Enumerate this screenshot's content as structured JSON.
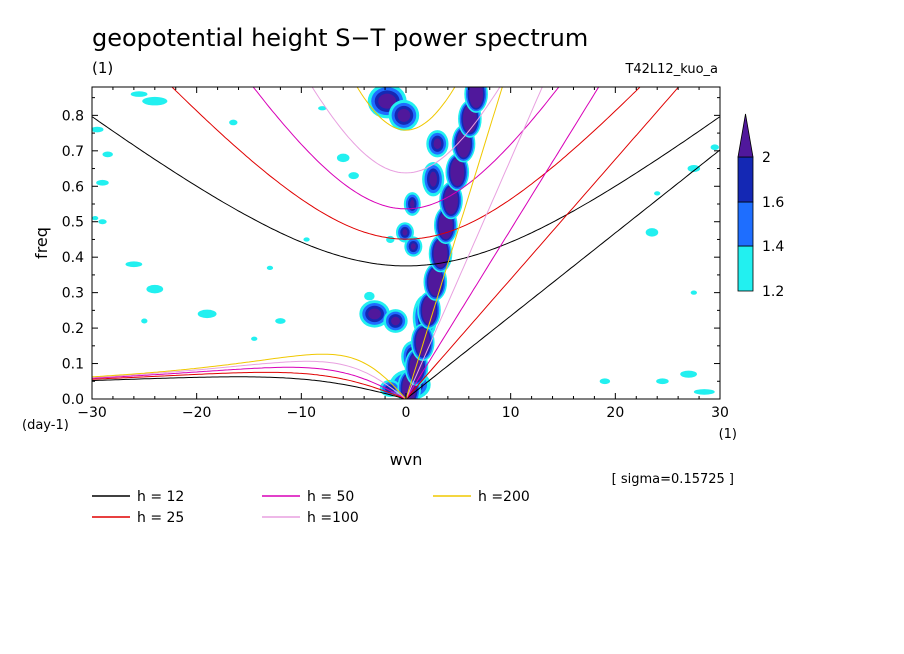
{
  "chart_data": {
    "type": "heatmap",
    "title": "geopotential height S−T power spectrum",
    "subtitle": "(1)",
    "run_label": "T42L12_kuo_a",
    "xlabel": "wvn",
    "xunit": "(1)",
    "ylabel": "freq",
    "yunit": "(day-1)",
    "sigma_label": "[ sigma=0.15725 ]",
    "xlim": [
      -30,
      30
    ],
    "ylim": [
      0,
      0.88
    ],
    "xticks": [
      -30,
      -20,
      -10,
      0,
      10,
      20,
      30
    ],
    "yticks": [
      0.0,
      0.1,
      0.2,
      0.3,
      0.4,
      0.5,
      0.6,
      0.7,
      0.8
    ],
    "colorbar": {
      "levels": [
        "1.2",
        "1.4",
        "1.6",
        "2"
      ],
      "colors": [
        "#22f0f0",
        "#1e6eff",
        "#1428b4",
        "#50189c"
      ]
    },
    "dispersion_curves": [
      {
        "label": "h = 12",
        "h": 12,
        "color": "#000000"
      },
      {
        "label": "h = 25",
        "h": 25,
        "color": "#e00000"
      },
      {
        "label": "h = 50",
        "h": 50,
        "color": "#d800b8"
      },
      {
        "label": "h =100",
        "h": 100,
        "color": "#e8a0e0"
      },
      {
        "label": "h =200",
        "h": 200,
        "color": "#f0c800"
      }
    ],
    "power_blobs": [
      {
        "k": -1.8,
        "f": 0.84,
        "rk": 1.4,
        "rf": 0.035,
        "level": 3
      },
      {
        "k": -0.2,
        "f": 0.8,
        "rk": 1.0,
        "rf": 0.03,
        "level": 3
      },
      {
        "k": 3.0,
        "f": 0.72,
        "rk": 0.6,
        "rf": 0.025,
        "level": 3
      },
      {
        "k": 2.6,
        "f": 0.62,
        "rk": 0.6,
        "rf": 0.035,
        "level": 3
      },
      {
        "k": 0.6,
        "f": 0.55,
        "rk": 0.35,
        "rf": 0.02,
        "level": 3
      },
      {
        "k": -0.1,
        "f": 0.47,
        "rk": 0.4,
        "rf": 0.015,
        "level": 3
      },
      {
        "k": 0.7,
        "f": 0.43,
        "rk": 0.4,
        "rf": 0.015,
        "level": 3
      },
      {
        "k": -3.0,
        "f": 0.24,
        "rk": 1.0,
        "rf": 0.025,
        "level": 3
      },
      {
        "k": -1.0,
        "f": 0.22,
        "rk": 0.7,
        "rf": 0.02,
        "level": 3
      },
      {
        "k": 1.8,
        "f": 0.23,
        "rk": 0.7,
        "rf": 0.05,
        "level": 3
      },
      {
        "k": 0.6,
        "f": 0.12,
        "rk": 0.6,
        "rf": 0.03,
        "level": 3
      },
      {
        "k": 0.4,
        "f": 0.04,
        "rk": 1.5,
        "rf": 0.03,
        "level": 3
      },
      {
        "k": -1.5,
        "f": 0.03,
        "rk": 0.7,
        "rf": 0.015,
        "level": 2
      },
      {
        "k": -6.0,
        "f": 0.68,
        "rk": 0.6,
        "rf": 0.012,
        "level": 0
      },
      {
        "k": -5.0,
        "f": 0.63,
        "rk": 0.5,
        "rf": 0.01,
        "level": 0
      },
      {
        "k": -1.5,
        "f": 0.45,
        "rk": 0.4,
        "rf": 0.01,
        "level": 0
      },
      {
        "k": -3.5,
        "f": 0.29,
        "rk": 0.5,
        "rf": 0.012,
        "level": 0
      },
      {
        "k": -19.0,
        "f": 0.24,
        "rk": 0.9,
        "rf": 0.012,
        "level": 0
      },
      {
        "k": -26.0,
        "f": 0.38,
        "rk": 0.8,
        "rf": 0.008,
        "level": 0
      },
      {
        "k": -24.0,
        "f": 0.31,
        "rk": 0.8,
        "rf": 0.012,
        "level": 0
      },
      {
        "k": -24.0,
        "f": 0.84,
        "rk": 1.2,
        "rf": 0.012,
        "level": 0
      },
      {
        "k": -25.5,
        "f": 0.86,
        "rk": 0.8,
        "rf": 0.008,
        "level": 0
      },
      {
        "k": -29.5,
        "f": 0.76,
        "rk": 0.6,
        "rf": 0.008,
        "level": 0
      },
      {
        "k": -29.0,
        "f": 0.61,
        "rk": 0.6,
        "rf": 0.008,
        "level": 0
      },
      {
        "k": -28.5,
        "f": 0.69,
        "rk": 0.5,
        "rf": 0.008,
        "level": 0
      },
      {
        "k": -29.7,
        "f": 0.51,
        "rk": 0.3,
        "rf": 0.006,
        "level": 0
      },
      {
        "k": -29.0,
        "f": 0.5,
        "rk": 0.4,
        "rf": 0.007,
        "level": 0
      },
      {
        "k": -16.5,
        "f": 0.78,
        "rk": 0.4,
        "rf": 0.008,
        "level": 0
      },
      {
        "k": -8.0,
        "f": 0.82,
        "rk": 0.4,
        "rf": 0.006,
        "level": 0
      },
      {
        "k": -9.5,
        "f": 0.45,
        "rk": 0.3,
        "rf": 0.006,
        "level": 0
      },
      {
        "k": -13.0,
        "f": 0.37,
        "rk": 0.3,
        "rf": 0.006,
        "level": 0
      },
      {
        "k": -12.0,
        "f": 0.22,
        "rk": 0.5,
        "rf": 0.008,
        "level": 0
      },
      {
        "k": -14.5,
        "f": 0.17,
        "rk": 0.3,
        "rf": 0.006,
        "level": 0
      },
      {
        "k": -25.0,
        "f": 0.22,
        "rk": 0.3,
        "rf": 0.007,
        "level": 0
      },
      {
        "k": 23.5,
        "f": 0.47,
        "rk": 0.6,
        "rf": 0.012,
        "level": 0
      },
      {
        "k": 27.5,
        "f": 0.65,
        "rk": 0.6,
        "rf": 0.01,
        "level": 0
      },
      {
        "k": 29.5,
        "f": 0.71,
        "rk": 0.4,
        "rf": 0.008,
        "level": 0
      },
      {
        "k": 24.0,
        "f": 0.58,
        "rk": 0.3,
        "rf": 0.006,
        "level": 0
      },
      {
        "k": 28.5,
        "f": 0.02,
        "rk": 1.0,
        "rf": 0.008,
        "level": 0
      },
      {
        "k": 27.0,
        "f": 0.07,
        "rk": 0.8,
        "rf": 0.01,
        "level": 0
      },
      {
        "k": 24.5,
        "f": 0.05,
        "rk": 0.6,
        "rf": 0.008,
        "level": 0
      },
      {
        "k": 19.0,
        "f": 0.05,
        "rk": 0.5,
        "rf": 0.008,
        "level": 0
      },
      {
        "k": 27.5,
        "f": 0.3,
        "rk": 0.3,
        "rf": 0.006,
        "level": 0
      }
    ]
  }
}
